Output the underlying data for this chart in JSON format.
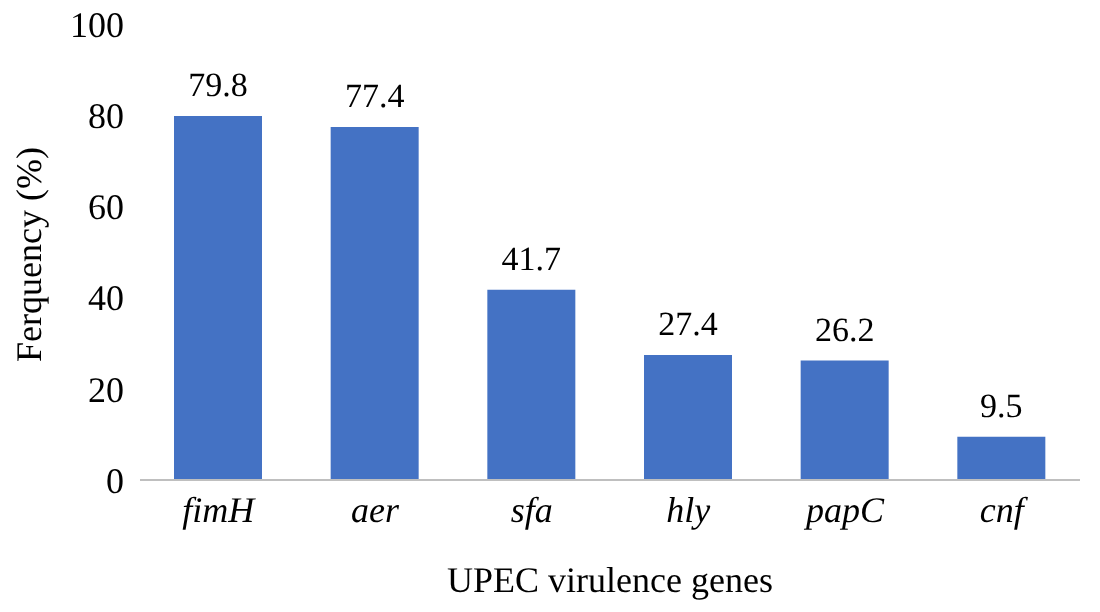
{
  "chart_data": {
    "type": "bar",
    "categories": [
      "fimH",
      "aer",
      "sfa",
      "hly",
      "papC",
      "cnf"
    ],
    "values": [
      79.8,
      77.4,
      41.7,
      27.4,
      26.2,
      9.5
    ],
    "color": "#4472c4",
    "xlabel": "UPEC virulence genes",
    "ylabel": "Ferquency (%)",
    "ylim": [
      0,
      100
    ],
    "yticks": [
      0,
      20,
      40,
      60,
      80,
      100
    ],
    "grid": false,
    "legend": false,
    "data_labels": true
  }
}
